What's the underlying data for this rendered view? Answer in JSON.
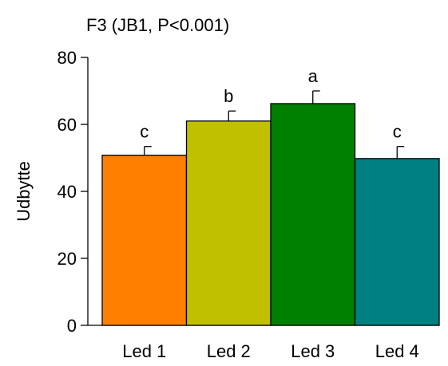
{
  "chart_data": {
    "type": "bar",
    "title": "F3 (JB1, P<0.001)",
    "ylabel": "Udbytte",
    "xlabel": "",
    "ylim": [
      0,
      80
    ],
    "yticks": [
      0,
      20,
      40,
      60,
      80
    ],
    "categories": [
      "Led 1",
      "Led 2",
      "Led 3",
      "Led 4"
    ],
    "values": [
      50.8,
      61.0,
      66.2,
      49.8
    ],
    "errors": [
      2.6,
      3.0,
      3.8,
      3.6
    ],
    "significance_labels": [
      "c",
      "b",
      "a",
      "c"
    ],
    "colors": [
      "#ff8000",
      "#c0c000",
      "#008000",
      "#008080"
    ],
    "grid": false,
    "legend": "none"
  }
}
